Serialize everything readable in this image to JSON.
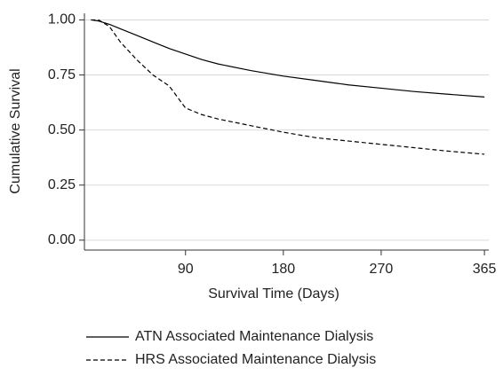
{
  "chart_data": {
    "type": "line",
    "x_label": "Survival Time (Days)",
    "y_label": "Cumulative Survival",
    "x": [
      3,
      10,
      20,
      30,
      45,
      60,
      75,
      90,
      105,
      120,
      150,
      180,
      210,
      240,
      270,
      300,
      330,
      365
    ],
    "series": [
      {
        "name": "ATN Associated Maintenance Dialysis",
        "color": "#000000",
        "line_style": "solid",
        "values": [
          1.0,
          0.995,
          0.98,
          0.96,
          0.93,
          0.9,
          0.87,
          0.845,
          0.82,
          0.8,
          0.77,
          0.745,
          0.725,
          0.705,
          0.69,
          0.675,
          0.663,
          0.65
        ]
      },
      {
        "name": "HRS Associated Maintenance Dialysis",
        "color": "#000000",
        "line_style": "dashed",
        "values": [
          1.0,
          1.0,
          0.97,
          0.9,
          0.82,
          0.75,
          0.7,
          0.6,
          0.57,
          0.55,
          0.52,
          0.49,
          0.465,
          0.45,
          0.435,
          0.42,
          0.405,
          0.39
        ]
      }
    ],
    "xlim": [
      -3,
      369
    ],
    "xticks": [
      90,
      180,
      270,
      365
    ],
    "ylim": [
      -0.045,
      1.03
    ],
    "yticks": [
      {
        "value": 0,
        "label": "0.00"
      },
      0.25,
      {
        "value": 0.5,
        "label": "0.50"
      },
      0.75,
      {
        "value": 1,
        "label": "1.00"
      }
    ],
    "grid": true,
    "legend": "bottom"
  }
}
